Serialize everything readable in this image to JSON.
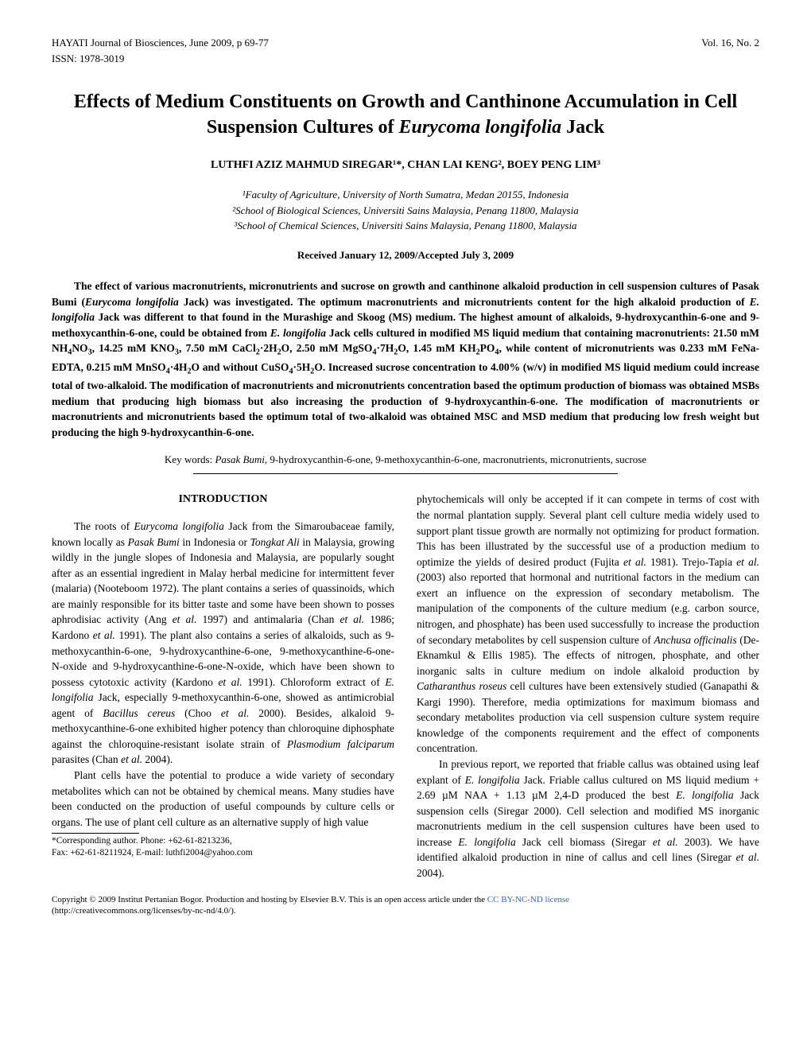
{
  "header": {
    "journal": "HAYATI Journal of Biosciences, June 2009, p 69-77",
    "volume": "Vol. 16, No. 2",
    "issn": "ISSN: 1978-3019"
  },
  "title": "Effects of Medium Constituents on Growth and Canthinone Accumulation in Cell Suspension Cultures of Eurycoma longifolia Jack",
  "authors": "LUTHFI AZIZ MAHMUD SIREGAR¹*, CHAN LAI KENG², BOEY PENG LIM³",
  "affiliations": {
    "a1": "¹Faculty of Agriculture, University of North Sumatra, Medan 20155, Indonesia",
    "a2": "²School of Biological Sciences, Universiti Sains Malaysia, Penang 11800, Malaysia",
    "a3": "³School of Chemical Sciences, Universiti Sains Malaysia, Penang 11800, Malaysia"
  },
  "dates": "Received January 12, 2009/Accepted July 3, 2009",
  "abstract": "The effect of various macronutrients, micronutrients and sucrose on growth and canthinone alkaloid production in cell suspension cultures of Pasak Bumi (Eurycoma longifolia Jack) was investigated. The optimum macronutrients and micronutrients content for the high alkaloid production of E. longifolia Jack was different to that found in the Murashige and Skoog (MS) medium. The highest amount of alkaloids, 9-hydroxycanthin-6-one and 9-methoxycanthin-6-one, could be obtained from E. longifolia Jack cells cultured in modified MS liquid medium that containing macronutrients: 21.50 mM NH₄NO₃, 14.25 mM KNO₃, 7.50 mM CaCl₂·2H₂O, 2.50 mM MgSO₄·7H₂O, 1.45 mM KH₂PO₄, while content of micronutrients was 0.233 mM FeNa-EDTA, 0.215 mM MnSO₄·4H₂O and without CuSO₄·5H₂O. Increased sucrose concentration to 4.00% (w/v) in modified MS liquid medium could increase total of two-alkaloid. The modification of macronutrients and micronutrients concentration based the optimum production of biomass was obtained MSBs medium that producing high biomass but also increasing the production of 9-hydroxycanthin-6-one. The modification of macronutrients or macronutrients and micronutrients based the optimum total of two-alkaloid was obtained MSC and MSD medium that producing low fresh weight but producing the high 9-hydroxycanthin-6-one.",
  "keywords": "Key words: Pasak Bumi, 9-hydroxycanthin-6-one, 9-methoxycanthin-6-one, macronutrients, micronutrients, sucrose",
  "intro_heading": "INTRODUCTION",
  "col1": {
    "p1": "The roots of Eurycoma longifolia Jack from the Simaroubaceae family, known locally as Pasak Bumi in Indonesia or Tongkat Ali in Malaysia, growing wildly in the jungle slopes of Indonesia and Malaysia, are popularly sought after as an essential ingredient in Malay herbal medicine for intermittent fever (malaria) (Nooteboom 1972). The plant contains a series of quassinoids, which are mainly responsible for its bitter taste and some have been shown to posses aphrodisiac activity (Ang et al. 1997) and antimalaria (Chan et al. 1986; Kardono et al. 1991). The plant also contains a series of alkaloids, such as 9-methoxycanthin-6-one, 9-hydroxycanthine-6-one, 9-methoxycanthine-6-one-N-oxide and 9-hydroxycanthine-6-one-N-oxide, which have been shown to possess cytotoxic activity (Kardono et al. 1991). Chloroform extract of E. longifolia Jack, especially 9-methoxycanthin-6-one, showed as antimicrobial agent of Bacillus cereus (Choo et al. 2000). Besides, alkaloid 9-methoxycanthine-6-one exhibited higher potency than chloroquine diphosphate against the chloroquine-resistant isolate strain of Plasmodium falciparum parasites (Chan et al. 2004).",
    "p2": "Plant cells have the potential to produce a wide variety of secondary metabolites which can not be obtained by chemical means. Many studies have been conducted on the production of useful compounds by culture cells or organs. The use of plant cell culture as an alternative supply of high value"
  },
  "footnote": {
    "line1": "*Corresponding author. Phone: +62-61-8213236,",
    "line2": "Fax: +62-61-8211924, E-mail: luthfi2004@yahoo.com"
  },
  "col2": {
    "p1": "phytochemicals will only be accepted if it can compete in terms of cost with the normal plantation supply. Several plant cell culture media widely used to support plant tissue growth are normally not optimizing for product formation. This has been illustrated by the successful use of a production medium to optimize the yields of desired product (Fujita et al. 1981). Trejo-Tapia et al. (2003) also reported that hormonal and nutritional factors in the medium can exert an influence on the expression of secondary metabolism. The manipulation of the components of the culture medium (e.g. carbon source, nitrogen, and phosphate) has been used successfully to increase the production of secondary metabolites by cell suspension culture of Anchusa officinalis (De-Eknamkul & Ellis 1985). The effects of nitrogen, phosphate, and other inorganic salts in culture medium on indole alkaloid production by Catharanthus roseus cell cultures have been extensively studied (Ganapathi & Kargi 1990). Therefore, media optimizations for maximum biomass and secondary metabolites production via cell suspension culture system require knowledge of the components requirement and the effect of components concentration.",
    "p2": "In previous report, we reported that friable callus was obtained using leaf explant of E. longifolia Jack. Friable callus cultured on MS liquid medium + 2.69 µM NAA + 1.13 µM 2,4-D produced the best E. longifolia Jack suspension cells (Siregar 2000). Cell selection and modified MS inorganic macronutrients medium in the cell suspension cultures have been used to increase E. longifolia Jack cell biomass (Siregar et al. 2003). We have identified alkaloid production in nine of callus and cell lines (Siregar et al. 2004)."
  },
  "footer": {
    "text1": "Copyright © 2009 Institut Pertanian Bogor. Production and hosting by Elsevier B.V. This is an open access article under the ",
    "link": "CC BY-NC-ND license",
    "text2": "(http://creativecommons.org/licenses/by-nc-nd/4.0/)."
  }
}
